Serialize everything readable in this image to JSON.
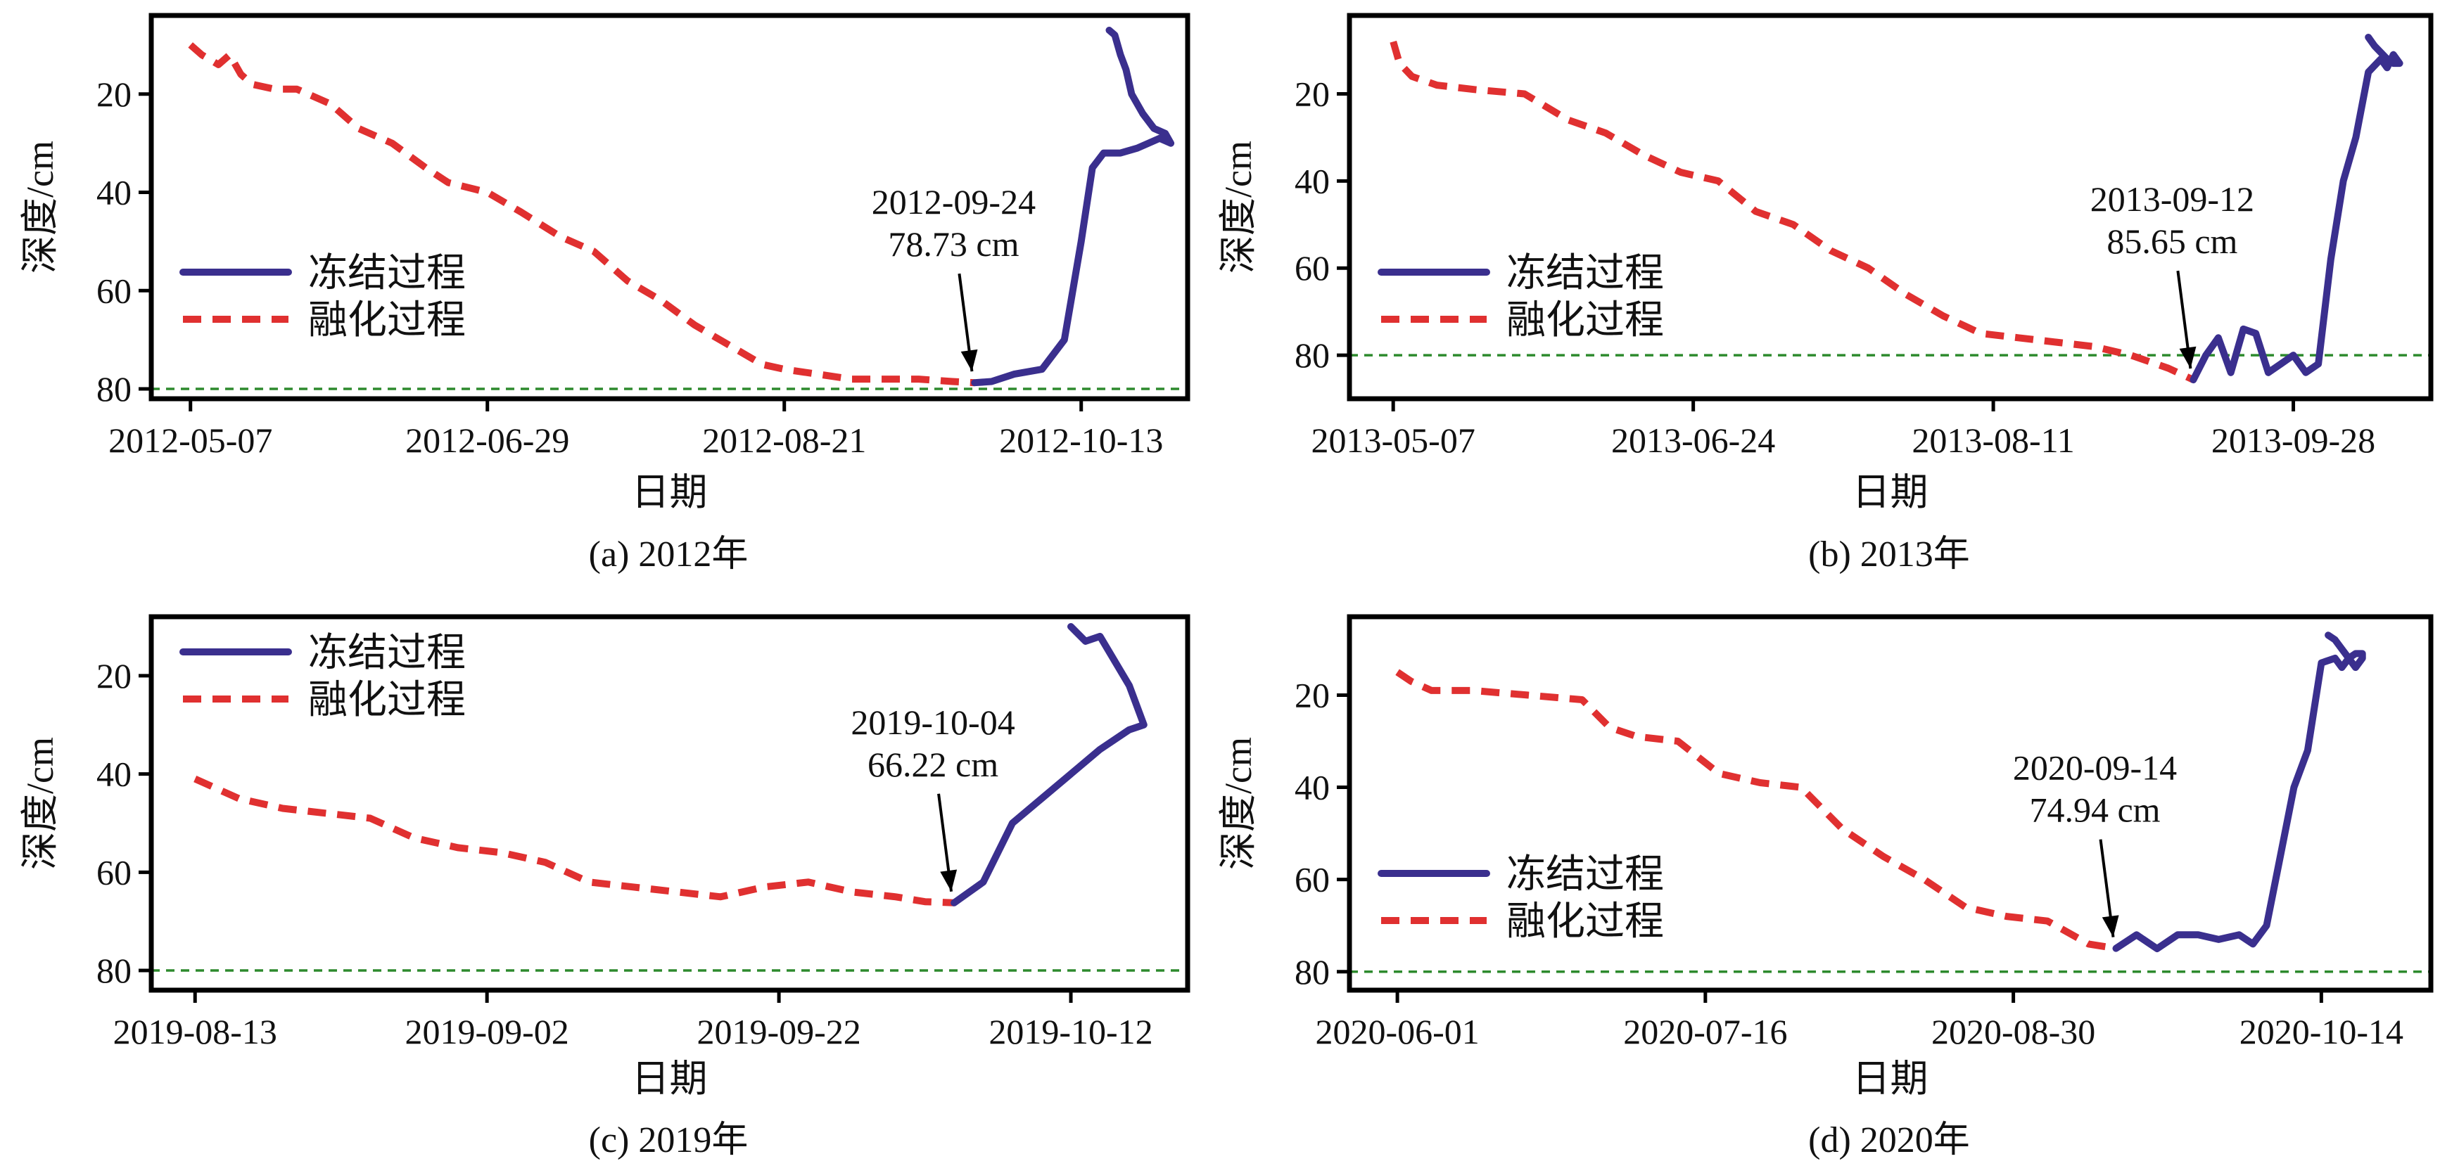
{
  "figure": {
    "legend": {
      "freeze": "冻结过程",
      "thaw": "融化过程"
    },
    "colors": {
      "freeze": "#3a2f8e",
      "thaw": "#e03030",
      "reference": "#2d8a2d"
    }
  },
  "chart_data": [
    {
      "type": "line",
      "caption": "(a) 2012年",
      "xlabel": "日期",
      "ylabel": "深度/cm",
      "x_ticks": [
        "2012-05-07",
        "2012-06-29",
        "2012-08-21",
        "2012-10-13"
      ],
      "xlim": [
        "2012-04-30",
        "2012-11-01"
      ],
      "ylim": [
        82,
        4
      ],
      "y_ticks": [
        20,
        40,
        60,
        80
      ],
      "reference_line": 80,
      "legend_position": "middle-left",
      "annotation": {
        "date": "2012-09-24",
        "value_text": "78.73 cm",
        "line1": "2012-09-24",
        "line2": "78.73 cm",
        "x": "2012-09-24",
        "y": 78.73
      },
      "series": [
        {
          "name": "融化过程",
          "style": "dashed",
          "x": [
            "2012-05-07",
            "2012-05-09",
            "2012-05-12",
            "2012-05-14",
            "2012-05-16",
            "2012-05-18",
            "2012-05-22",
            "2012-05-26",
            "2012-06-01",
            "2012-06-06",
            "2012-06-12",
            "2012-06-18",
            "2012-06-22",
            "2012-06-29",
            "2012-07-05",
            "2012-07-12",
            "2012-07-18",
            "2012-07-24",
            "2012-07-30",
            "2012-08-05",
            "2012-08-11",
            "2012-08-17",
            "2012-08-21",
            "2012-08-27",
            "2012-09-02",
            "2012-09-08",
            "2012-09-14",
            "2012-09-20",
            "2012-09-24"
          ],
          "y": [
            10,
            12,
            14,
            12,
            16,
            18,
            19,
            19,
            22,
            27,
            30,
            35,
            38,
            40,
            44,
            49,
            52,
            58,
            62,
            67,
            71,
            75,
            76,
            77,
            78,
            78,
            78,
            78.5,
            78.73
          ]
        },
        {
          "name": "冻结过程",
          "style": "solid",
          "x": [
            "2012-09-24",
            "2012-09-27",
            "2012-10-01",
            "2012-10-06",
            "2012-10-10",
            "2012-10-13",
            "2012-10-15",
            "2012-10-17",
            "2012-10-20",
            "2012-10-23",
            "2012-10-25",
            "2012-10-27",
            "2012-10-29",
            "2012-10-28",
            "2012-10-26",
            "2012-10-24",
            "2012-10-22",
            "2012-10-21",
            "2012-10-20",
            "2012-10-19",
            "2012-10-18"
          ],
          "y": [
            78.73,
            78.5,
            77,
            76,
            70,
            50,
            35,
            32,
            32,
            31,
            30,
            29,
            30,
            28,
            27,
            24,
            20,
            15,
            12,
            8,
            7
          ]
        }
      ]
    },
    {
      "type": "line",
      "caption": "(b) 2013年",
      "xlabel": "日期",
      "ylabel": "深度/cm",
      "x_ticks": [
        "2013-05-07",
        "2013-06-24",
        "2013-08-11",
        "2013-09-28"
      ],
      "xlim": [
        "2013-04-30",
        "2013-10-20"
      ],
      "ylim": [
        90,
        2
      ],
      "y_ticks": [
        20,
        40,
        60,
        80
      ],
      "reference_line": 80,
      "legend_position": "middle-left",
      "annotation": {
        "date": "2013-09-12",
        "value_text": "85.65 cm",
        "line1": "2013-09-12",
        "line2": "85.65 cm",
        "x": "2013-09-12",
        "y": 85.65
      },
      "series": [
        {
          "name": "融化过程",
          "style": "dashed",
          "x": [
            "2013-05-07",
            "2013-05-08",
            "2013-05-10",
            "2013-05-14",
            "2013-05-20",
            "2013-05-28",
            "2013-06-04",
            "2013-06-10",
            "2013-06-16",
            "2013-06-22",
            "2013-06-28",
            "2013-07-04",
            "2013-07-10",
            "2013-07-16",
            "2013-07-22",
            "2013-07-28",
            "2013-08-03",
            "2013-08-09",
            "2013-08-15",
            "2013-08-21",
            "2013-08-27",
            "2013-09-02",
            "2013-09-08",
            "2013-09-12"
          ],
          "y": [
            8,
            13,
            16,
            18,
            19,
            20,
            26,
            29,
            34,
            38,
            40,
            47,
            50,
            56,
            60,
            66,
            71,
            75,
            76,
            77,
            78,
            80,
            83,
            85.65
          ]
        },
        {
          "name": "冻结过程",
          "style": "solid",
          "x": [
            "2013-09-12",
            "2013-09-14",
            "2013-09-16",
            "2013-09-18",
            "2013-09-20",
            "2013-09-22",
            "2013-09-24",
            "2013-09-26",
            "2013-09-28",
            "2013-09-30",
            "2013-10-02",
            "2013-10-04",
            "2013-10-06",
            "2013-10-08",
            "2013-10-10",
            "2013-10-12",
            "2013-10-13",
            "2013-10-14",
            "2013-10-15",
            "2013-10-14",
            "2013-10-13",
            "2013-10-11",
            "2013-10-10"
          ],
          "y": [
            85.65,
            80,
            76,
            84,
            74,
            75,
            84,
            82,
            80,
            84,
            82,
            58,
            40,
            30,
            15,
            12,
            14,
            11,
            13,
            13,
            12,
            9,
            7
          ]
        }
      ]
    },
    {
      "type": "line",
      "caption": "(c) 2019年",
      "xlabel": "日期",
      "ylabel": "深度/cm",
      "x_ticks": [
        "2019-08-13",
        "2019-09-02",
        "2019-09-22",
        "2019-10-12"
      ],
      "xlim": [
        "2019-08-10",
        "2019-10-20"
      ],
      "ylim": [
        84,
        8
      ],
      "y_ticks": [
        20,
        40,
        60,
        80
      ],
      "reference_line": 80,
      "legend_position": "top-left",
      "annotation": {
        "date": "2019-10-04",
        "value_text": "66.22 cm",
        "line1": "2019-10-04",
        "line2": "66.22 cm",
        "x": "2019-10-04",
        "y": 66.22
      },
      "series": [
        {
          "name": "融化过程",
          "style": "dashed",
          "x": [
            "2019-08-13",
            "2019-08-16",
            "2019-08-19",
            "2019-08-22",
            "2019-08-25",
            "2019-08-28",
            "2019-08-31",
            "2019-09-03",
            "2019-09-06",
            "2019-09-09",
            "2019-09-12",
            "2019-09-15",
            "2019-09-18",
            "2019-09-21",
            "2019-09-24",
            "2019-09-27",
            "2019-09-30",
            "2019-10-02",
            "2019-10-04"
          ],
          "y": [
            41,
            45,
            47,
            48,
            49,
            53,
            55,
            56,
            58,
            62,
            63,
            64,
            65,
            63,
            62,
            64,
            65,
            66,
            66.22
          ]
        },
        {
          "name": "冻结过程",
          "style": "solid",
          "x": [
            "2019-10-04",
            "2019-10-06",
            "2019-10-08",
            "2019-10-10",
            "2019-10-12",
            "2019-10-14",
            "2019-10-16",
            "2019-10-17",
            "2019-10-16",
            "2019-10-14",
            "2019-10-13",
            "2019-10-12"
          ],
          "y": [
            66.22,
            62,
            50,
            45,
            40,
            35,
            31,
            30,
            22,
            12,
            13,
            10
          ]
        }
      ]
    },
    {
      "type": "line",
      "caption": "(d) 2020年",
      "xlabel": "日期",
      "ylabel": "深度/cm",
      "x_ticks": [
        "2020-06-01",
        "2020-07-16",
        "2020-08-30",
        "2020-10-14"
      ],
      "xlim": [
        "2020-05-25",
        "2020-10-30"
      ],
      "ylim": [
        84,
        3
      ],
      "y_ticks": [
        20,
        40,
        60,
        80
      ],
      "reference_line": 80,
      "legend_position": "middle-left",
      "annotation": {
        "date": "2020-09-14",
        "value_text": "74.94 cm",
        "line1": "2020-09-14",
        "line2": "74.94 cm",
        "x": "2020-09-14",
        "y": 74.94
      },
      "series": [
        {
          "name": "融化过程",
          "style": "dashed",
          "x": [
            "2020-06-01",
            "2020-06-03",
            "2020-06-06",
            "2020-06-12",
            "2020-06-20",
            "2020-06-28",
            "2020-07-02",
            "2020-07-06",
            "2020-07-12",
            "2020-07-18",
            "2020-07-24",
            "2020-07-30",
            "2020-08-05",
            "2020-08-11",
            "2020-08-17",
            "2020-08-23",
            "2020-08-29",
            "2020-09-04",
            "2020-09-10",
            "2020-09-14"
          ],
          "y": [
            15,
            17,
            19,
            19,
            20,
            21,
            27,
            29,
            30,
            37,
            39,
            40,
            49,
            55,
            60,
            66,
            68,
            69,
            74,
            74.94
          ]
        },
        {
          "name": "冻结过程",
          "style": "solid",
          "x": [
            "2020-09-14",
            "2020-09-17",
            "2020-09-20",
            "2020-09-23",
            "2020-09-26",
            "2020-09-29",
            "2020-10-02",
            "2020-10-04",
            "2020-10-06",
            "2020-10-08",
            "2020-10-10",
            "2020-10-12",
            "2020-10-14",
            "2020-10-16",
            "2020-10-17",
            "2020-10-18",
            "2020-10-19",
            "2020-10-20",
            "2020-10-20",
            "2020-10-19",
            "2020-10-18",
            "2020-10-17",
            "2020-10-16",
            "2020-10-15"
          ],
          "y": [
            74.94,
            72,
            75,
            72,
            72,
            73,
            72,
            74,
            70,
            55,
            40,
            32,
            13,
            12,
            14,
            12,
            14,
            12,
            11,
            11,
            12,
            10,
            8,
            7
          ]
        }
      ]
    }
  ]
}
